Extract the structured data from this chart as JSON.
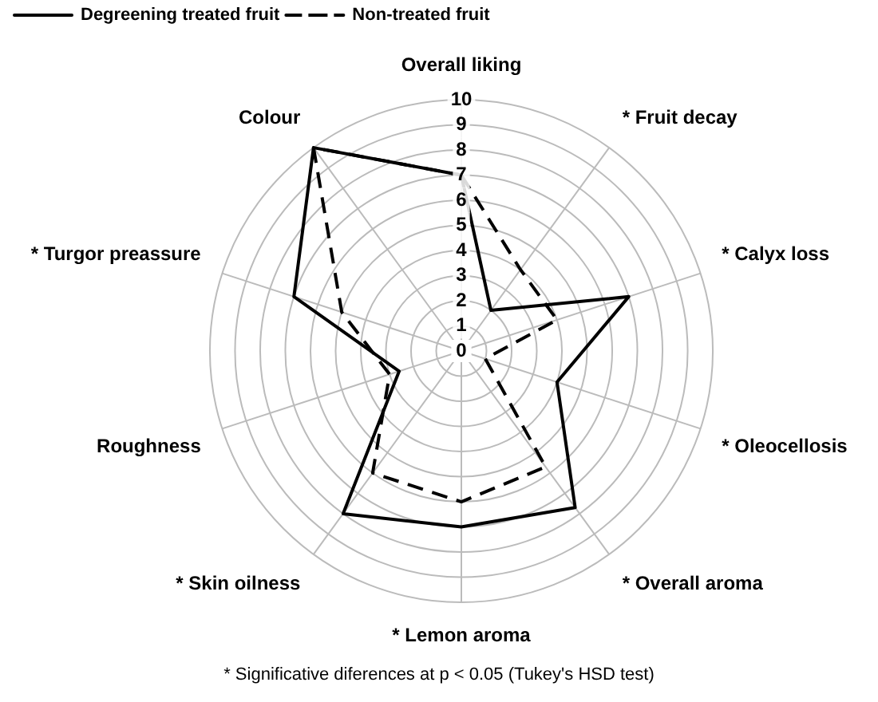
{
  "chart_data": {
    "type": "radar",
    "categories": [
      "Overall liking",
      "* Fruit decay",
      "* Calyx loss",
      "* Oleocellosis",
      "* Overall aroma",
      "* Lemon aroma",
      "* Skin oilness",
      "Roughness",
      "* Turgor preassure",
      "Colour"
    ],
    "series": [
      {
        "name": "Degreening treated fruit",
        "color": "#000000",
        "line_style": "solid",
        "values": [
          7,
          2,
          7,
          4,
          7.7,
          7,
          8,
          2.6,
          7,
          10
        ]
      },
      {
        "name": "Non-treated fruit",
        "color": "#000000",
        "line_style": "dashed",
        "values": [
          7,
          4,
          4,
          1,
          5.7,
          6,
          6,
          3,
          5,
          10
        ]
      }
    ],
    "ylim": [
      0,
      10
    ],
    "yticks": [
      0,
      1,
      2,
      3,
      4,
      5,
      6,
      7,
      8,
      9,
      10
    ],
    "grid": true,
    "legend": "top left",
    "marker": "none",
    "annotations": [
      "* Significative diferences at p < 0.05 (Tukey's HSD test)"
    ]
  }
}
